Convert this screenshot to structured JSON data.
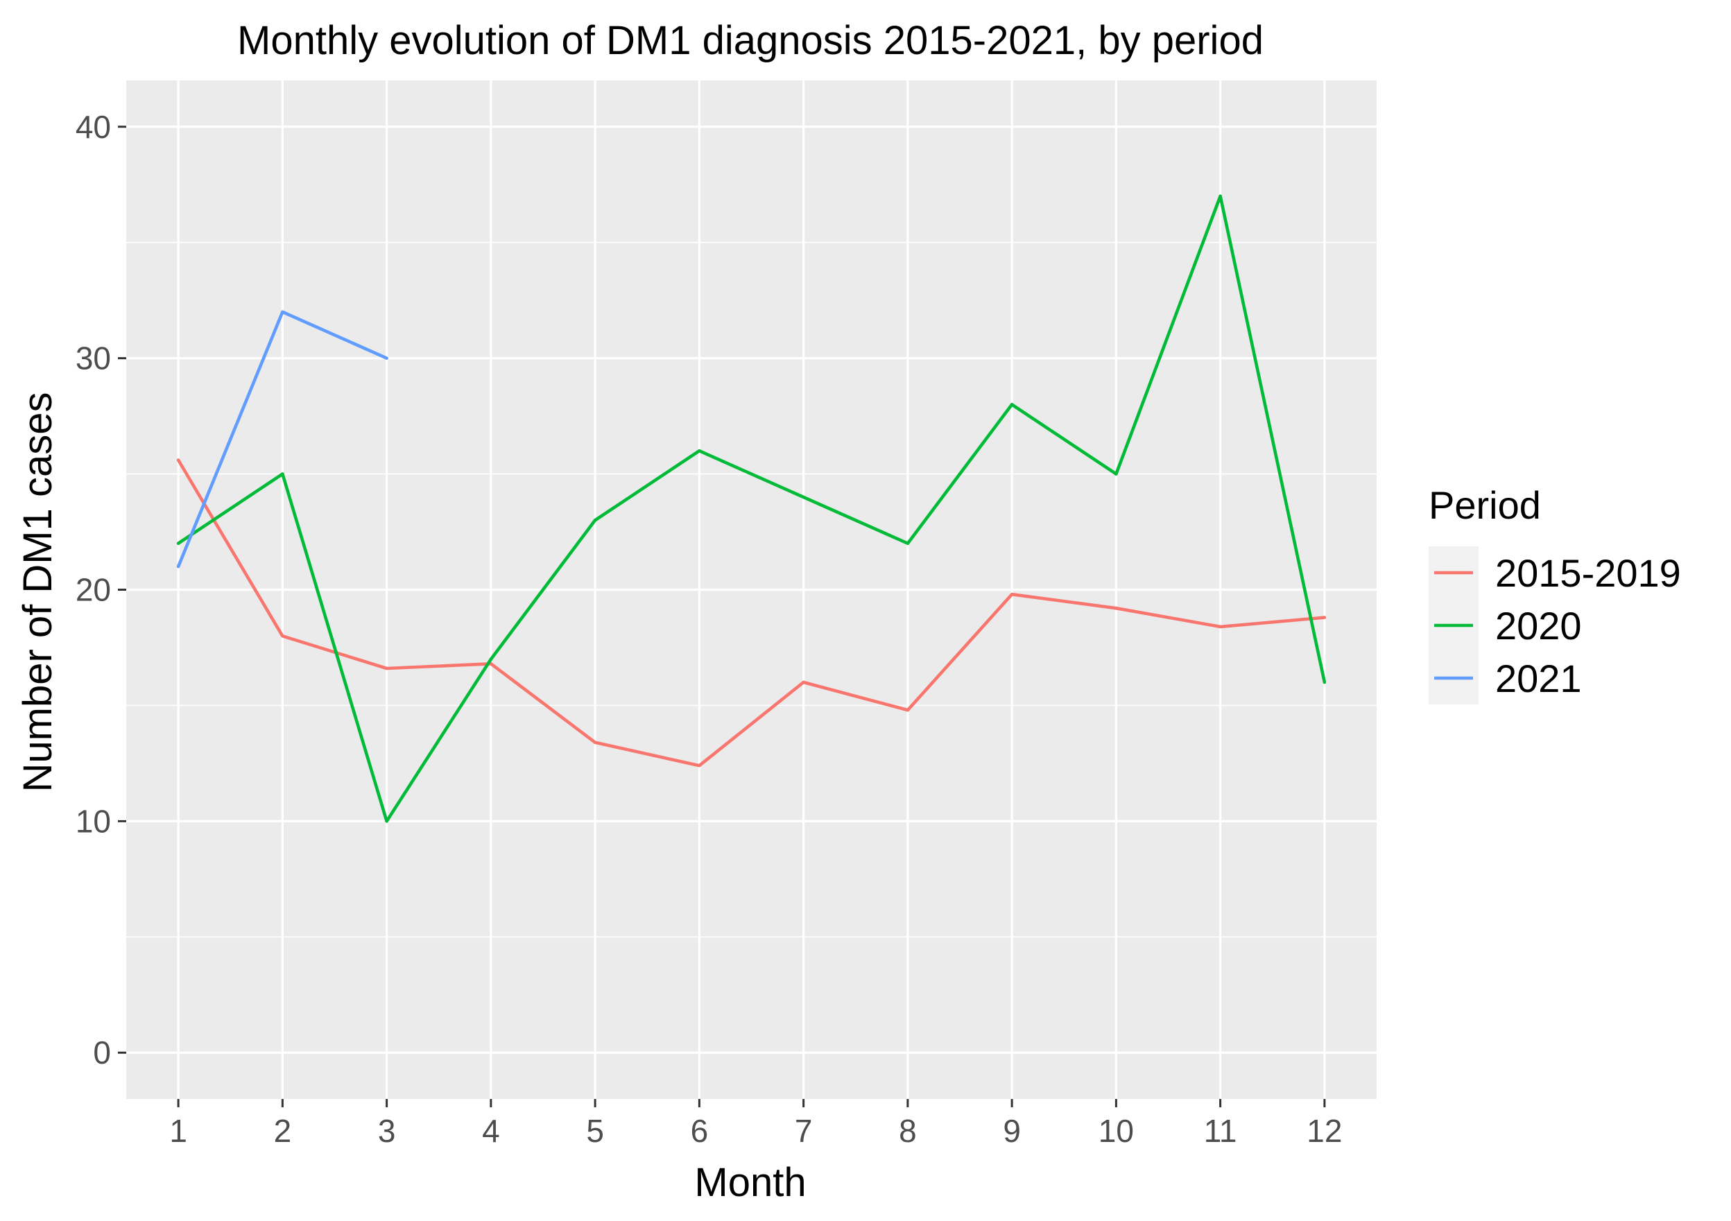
{
  "chart_data": {
    "type": "line",
    "title": "Monthly evolution of DM1 diagnosis 2015-2021, by period",
    "xlabel": "Month",
    "ylabel": "Number of DM1 cases",
    "xlim": [
      0.5,
      12.5
    ],
    "ylim": [
      -2,
      42
    ],
    "x_ticks": [
      1,
      2,
      3,
      4,
      5,
      6,
      7,
      8,
      9,
      10,
      11,
      12
    ],
    "y_ticks": [
      0,
      10,
      20,
      30,
      40
    ],
    "grid": true,
    "legend": {
      "title": "Period",
      "position": "right"
    },
    "series": [
      {
        "name": "2015-2019",
        "color": "#F8766D",
        "x": [
          1,
          2,
          3,
          4,
          5,
          6,
          7,
          8,
          9,
          10,
          11,
          12
        ],
        "values": [
          25.6,
          18.0,
          16.6,
          16.8,
          13.4,
          12.4,
          16.0,
          14.8,
          19.8,
          19.2,
          18.4,
          18.8
        ]
      },
      {
        "name": "2020",
        "color": "#00BA38",
        "x": [
          1,
          2,
          3,
          4,
          5,
          6,
          7,
          8,
          9,
          10,
          11,
          12
        ],
        "values": [
          22,
          25,
          10,
          17,
          23,
          26,
          24,
          22,
          28,
          25,
          37,
          16
        ]
      },
      {
        "name": "2021",
        "color": "#619CFF",
        "x": [
          1,
          2,
          3
        ],
        "values": [
          21,
          32,
          30
        ]
      }
    ]
  }
}
